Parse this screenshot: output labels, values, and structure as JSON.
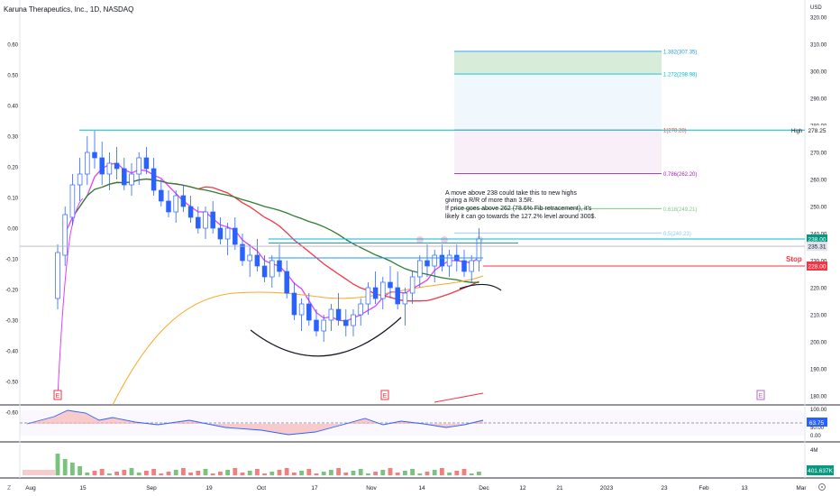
{
  "header": {
    "title": "Karuna Therapeutics, Inc., 1D, NASDAQ",
    "currency": "USD"
  },
  "left_axis": {
    "labels": [
      "0.60",
      "0.50",
      "0.40",
      "0.30",
      "0.20",
      "0.10",
      "0.00",
      "-0.10",
      "-0.20",
      "-0.30",
      "-0.40",
      "-0.50",
      "-0.60"
    ],
    "values": [
      0.6,
      0.5,
      0.4,
      0.3,
      0.2,
      0.1,
      0.0,
      -0.1,
      -0.2,
      -0.3,
      -0.4,
      -0.5,
      -0.6
    ]
  },
  "right_axis": {
    "labels": [
      "320.00",
      "310.00",
      "300.00",
      "290.00",
      "280.00",
      "270.00",
      "260.00",
      "250.00",
      "240.00",
      "230.00",
      "220.00",
      "210.00",
      "200.00",
      "190.00",
      "180.00"
    ],
    "values": [
      320,
      310,
      300,
      290,
      280,
      270,
      260,
      250,
      240,
      230,
      220,
      210,
      200,
      190,
      180
    ]
  },
  "time_axis": {
    "labels": [
      "Aug",
      "15",
      "Sep",
      "19",
      "Oct",
      "17",
      "Nov",
      "14",
      "Dec",
      "12",
      "21",
      "2023",
      "23",
      "Feb",
      "13",
      "Mar"
    ]
  },
  "fib_levels": [
    {
      "label": "1.382(307.35)",
      "value": 307.35,
      "color": "#2196f3"
    },
    {
      "label": "1.272(298.98)",
      "value": 298.98,
      "color": "#00bcd4"
    },
    {
      "label": "1(278.28)",
      "value": 278.28,
      "color": "#f44336"
    },
    {
      "label": "0.786(262.20)",
      "value": 262.2,
      "color": "#9c27b0"
    },
    {
      "label": "0.618(249.21)",
      "value": 249.21,
      "color": "#81c784"
    },
    {
      "label": "0.5(240.23)",
      "value": 240.23,
      "color": "#90caf9"
    }
  ],
  "price_tags": [
    {
      "label": "High",
      "value": "278.25",
      "color": "#ffffff",
      "text_color": "#131722"
    },
    {
      "label": "",
      "value": "238.00",
      "color": "#089981",
      "text_color": "#ffffff"
    },
    {
      "label": "",
      "value": "235.31",
      "color": "#e0e3eb",
      "text_color": "#131722"
    },
    {
      "label": "Stop",
      "value": "228.00",
      "color": "#f23645",
      "text_color": "#ffffff"
    }
  ],
  "annotation": {
    "lines": [
      "A move above 238 could take this to new highs",
      "giving a R/R of more than 3.5R.",
      "If price goes above 262 (78.6% Fib retracement), it's",
      "likely it can go towards the 127.2% level around 300$."
    ]
  },
  "stop_label": "Stop",
  "event_markers": [
    "E",
    "E",
    "E"
  ],
  "rsi": {
    "labels": [
      "100.00",
      "50.00",
      "0.00"
    ],
    "value": "63.75",
    "color": "#2962ff"
  },
  "volume": {
    "label": "4M",
    "value": "401.637K",
    "color": "#089981"
  },
  "chart_data": {
    "type": "candlestick",
    "title": "Karuna Therapeutics, Inc., 1D, NASDAQ",
    "ylim": [
      178,
      324
    ],
    "y_label": "USD",
    "candles": [
      [
        216,
        236,
        212,
        233
      ],
      [
        232,
        250,
        228,
        247
      ],
      [
        246,
        262,
        243,
        258
      ],
      [
        258,
        268,
        252,
        262
      ],
      [
        262,
        276,
        258,
        270
      ],
      [
        270,
        278,
        264,
        268
      ],
      [
        268,
        274,
        258,
        262
      ],
      [
        262,
        270,
        256,
        266
      ],
      [
        266,
        272,
        260,
        264
      ],
      [
        264,
        268,
        256,
        258
      ],
      [
        258,
        266,
        254,
        262
      ],
      [
        262,
        270,
        258,
        268
      ],
      [
        268,
        272,
        262,
        264
      ],
      [
        264,
        268,
        254,
        256
      ],
      [
        256,
        260,
        250,
        252
      ],
      [
        252,
        256,
        246,
        248
      ],
      [
        248,
        256,
        244,
        254
      ],
      [
        254,
        258,
        248,
        250
      ],
      [
        250,
        254,
        244,
        246
      ],
      [
        246,
        250,
        240,
        242
      ],
      [
        242,
        250,
        238,
        248
      ],
      [
        248,
        252,
        240,
        242
      ],
      [
        242,
        246,
        236,
        238
      ],
      [
        238,
        244,
        232,
        242
      ],
      [
        242,
        246,
        234,
        236
      ],
      [
        236,
        240,
        228,
        230
      ],
      [
        230,
        236,
        224,
        232
      ],
      [
        232,
        238,
        226,
        228
      ],
      [
        228,
        232,
        222,
        224
      ],
      [
        224,
        232,
        220,
        230
      ],
      [
        230,
        236,
        224,
        226
      ],
      [
        226,
        230,
        216,
        218
      ],
      [
        218,
        222,
        208,
        210
      ],
      [
        210,
        216,
        204,
        214
      ],
      [
        214,
        218,
        206,
        208
      ],
      [
        208,
        212,
        202,
        204
      ],
      [
        204,
        210,
        200,
        208
      ],
      [
        208,
        214,
        204,
        212
      ],
      [
        212,
        218,
        206,
        208
      ],
      [
        208,
        212,
        202,
        206
      ],
      [
        206,
        212,
        202,
        210
      ],
      [
        210,
        216,
        206,
        214
      ],
      [
        214,
        222,
        210,
        220
      ],
      [
        220,
        226,
        214,
        216
      ],
      [
        216,
        224,
        212,
        222
      ],
      [
        222,
        228,
        216,
        220
      ],
      [
        220,
        226,
        212,
        214
      ],
      [
        214,
        220,
        206,
        218
      ],
      [
        218,
        226,
        214,
        224
      ],
      [
        224,
        232,
        220,
        230
      ],
      [
        230,
        236,
        224,
        228
      ],
      [
        228,
        234,
        222,
        232
      ],
      [
        232,
        236,
        226,
        228
      ],
      [
        228,
        234,
        224,
        232
      ],
      [
        232,
        236,
        226,
        230
      ],
      [
        230,
        234,
        224,
        226
      ],
      [
        226,
        232,
        222,
        230
      ],
      [
        230,
        242,
        226,
        238
      ]
    ],
    "levels": {
      "high": 278.25,
      "entry": 238.0,
      "last": 235.31,
      "stop": 228.0
    }
  }
}
